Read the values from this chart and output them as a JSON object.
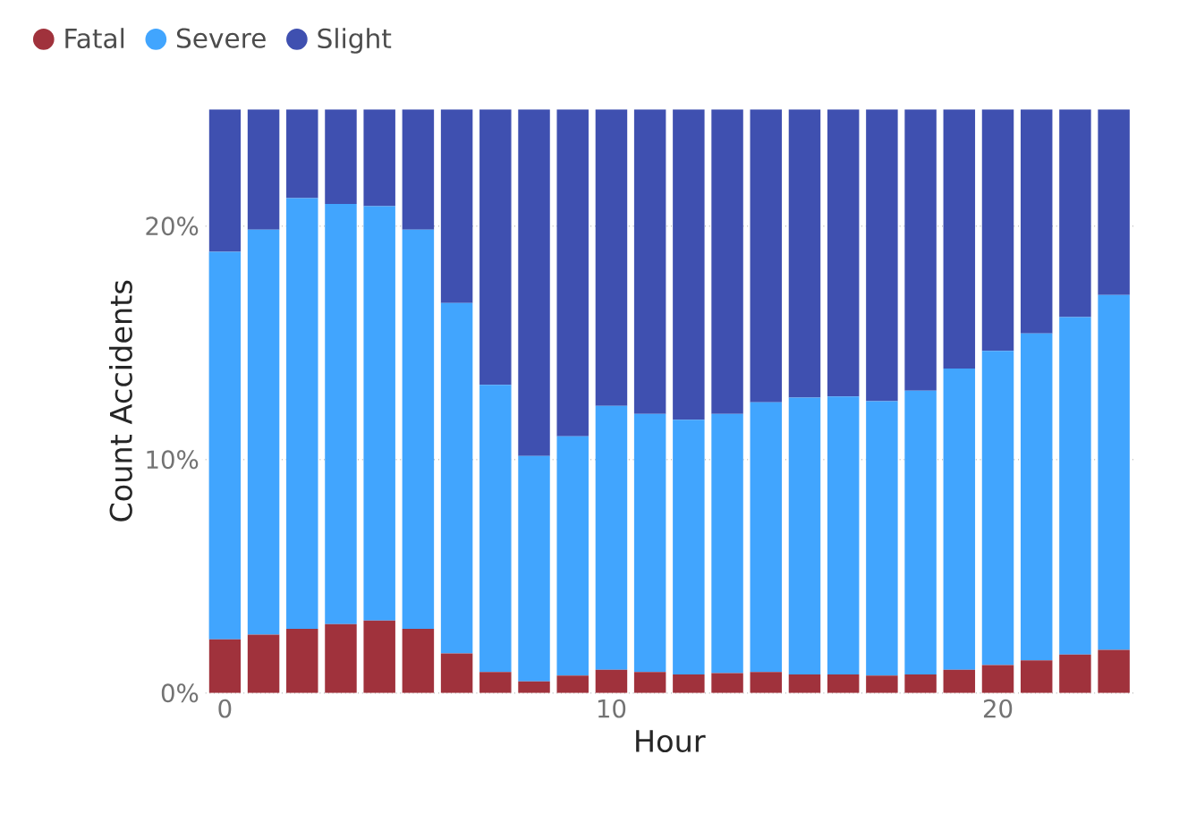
{
  "chart_data": {
    "type": "bar",
    "stacked": true,
    "xlabel": "Hour",
    "ylabel": "Count Accidents",
    "x": [
      0,
      1,
      2,
      3,
      4,
      5,
      6,
      7,
      8,
      9,
      10,
      11,
      12,
      13,
      14,
      15,
      16,
      17,
      18,
      19,
      20,
      21,
      22,
      23
    ],
    "xlim": [
      -0.5,
      23.5
    ],
    "xticks": [
      0,
      10,
      20
    ],
    "ylim": [
      0,
      25
    ],
    "yticks": [
      {
        "value": 0,
        "label": "0%"
      },
      {
        "value": 10,
        "label": "10%"
      },
      {
        "value": 20,
        "label": "20%"
      }
    ],
    "grid": "y",
    "legend": "top left",
    "series": [
      {
        "name": "Fatal",
        "color": "#a0323c",
        "values": [
          2.3,
          2.5,
          2.75,
          2.95,
          3.1,
          2.75,
          1.7,
          0.9,
          0.5,
          0.75,
          1.0,
          0.9,
          0.8,
          0.85,
          0.9,
          0.8,
          0.8,
          0.75,
          0.8,
          1.0,
          1.2,
          1.4,
          1.65,
          1.85
        ]
      },
      {
        "name": "Severe",
        "color": "#41a5fe",
        "values": [
          16.6,
          17.35,
          18.45,
          18.0,
          17.75,
          17.1,
          15.0,
          12.3,
          9.65,
          10.25,
          11.3,
          11.05,
          10.9,
          11.1,
          11.55,
          11.85,
          11.9,
          11.75,
          12.15,
          12.9,
          13.45,
          14.0,
          14.45,
          15.2
        ]
      },
      {
        "name": "Slight",
        "color": "#3f50b0",
        "values": [
          6.1,
          5.15,
          3.8,
          4.05,
          4.15,
          5.15,
          8.3,
          11.8,
          14.85,
          14.0,
          12.7,
          13.05,
          13.3,
          13.05,
          12.55,
          12.35,
          12.3,
          12.5,
          12.05,
          11.1,
          10.35,
          9.6,
          8.9,
          7.95
        ]
      }
    ]
  }
}
